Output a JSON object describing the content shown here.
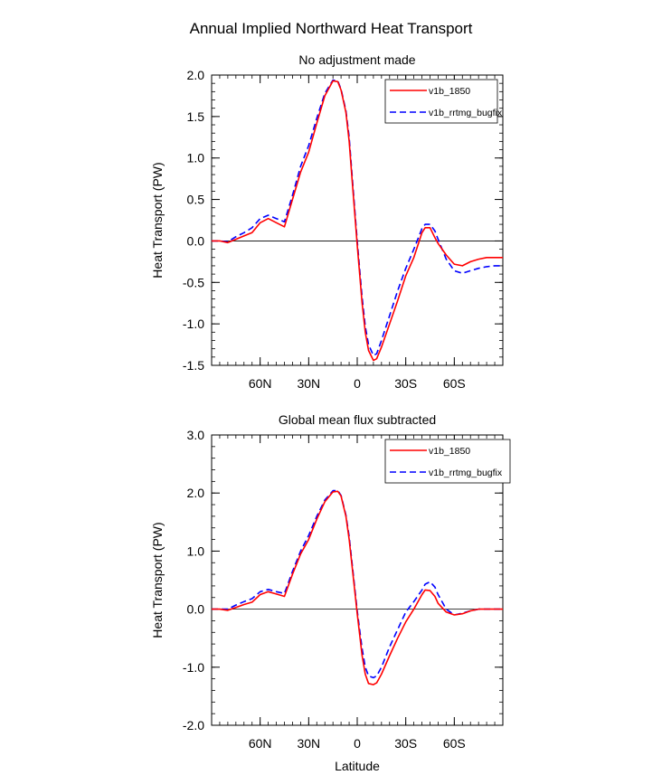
{
  "title": "Annual Implied Northward Heat Transport",
  "colors": {
    "series1": "#ff0000",
    "series2": "#0000ff",
    "zero": "#000000"
  },
  "chart_data": [
    {
      "type": "line",
      "subtitle": "No adjustment made",
      "ylabel": "Heat Transport (PW)",
      "xlabel": "",
      "xlim": [
        -90,
        90
      ],
      "ylim": [
        -1.5,
        2.0
      ],
      "yticks": [
        -1.5,
        -1.0,
        -0.5,
        0.0,
        0.5,
        1.0,
        1.5,
        2.0
      ],
      "ytick_labels": [
        "-1.5",
        "-1.0",
        "-0.5",
        "0.0",
        "0.5",
        "1.0",
        "1.5",
        "2.0"
      ],
      "xticks": [
        -60,
        -30,
        0,
        30,
        60
      ],
      "xtick_labels": [
        "60N",
        "30N",
        "0",
        "30S",
        "60S"
      ],
      "legend": [
        "v1b_1850",
        "v1b_rrtmg_bugfix"
      ],
      "x": [
        -90,
        -85,
        -80,
        -75,
        -70,
        -65,
        -60,
        -55,
        -50,
        -45,
        -40,
        -35,
        -30,
        -25,
        -20,
        -15,
        -12,
        -10,
        -7,
        -5,
        -3,
        0,
        3,
        5,
        7,
        10,
        12,
        15,
        20,
        25,
        30,
        35,
        40,
        42,
        45,
        48,
        50,
        55,
        60,
        65,
        70,
        75,
        80,
        85,
        90
      ],
      "series": [
        {
          "name": "v1b_1850",
          "style": "solid",
          "values": [
            0,
            0,
            -0.02,
            0.02,
            0.06,
            0.1,
            0.22,
            0.27,
            0.22,
            0.17,
            0.5,
            0.83,
            1.07,
            1.42,
            1.75,
            1.93,
            1.92,
            1.82,
            1.55,
            1.2,
            0.7,
            -0.05,
            -0.75,
            -1.1,
            -1.32,
            -1.44,
            -1.42,
            -1.28,
            -1.0,
            -0.72,
            -0.42,
            -0.2,
            0.1,
            0.16,
            0.16,
            0.04,
            -0.03,
            -0.17,
            -0.28,
            -0.3,
            -0.25,
            -0.22,
            -0.2,
            -0.2,
            -0.2
          ]
        },
        {
          "name": "v1b_rrtmg_bugfix",
          "style": "dashed",
          "values": [
            0,
            0,
            -0.01,
            0.05,
            0.1,
            0.16,
            0.27,
            0.31,
            0.27,
            0.23,
            0.55,
            0.9,
            1.15,
            1.48,
            1.78,
            1.94,
            1.93,
            1.83,
            1.57,
            1.25,
            0.75,
            0.0,
            -0.68,
            -1.03,
            -1.25,
            -1.38,
            -1.36,
            -1.2,
            -0.9,
            -0.6,
            -0.33,
            -0.1,
            0.15,
            0.2,
            0.2,
            0.12,
            0.02,
            -0.22,
            -0.36,
            -0.39,
            -0.36,
            -0.33,
            -0.31,
            -0.3,
            -0.3
          ]
        }
      ]
    },
    {
      "type": "line",
      "subtitle": "Global mean flux subtracted",
      "ylabel": "Heat Transport (PW)",
      "xlabel": "Latitude",
      "xlim": [
        -90,
        90
      ],
      "ylim": [
        -2.0,
        3.0
      ],
      "yticks": [
        -2.0,
        -1.0,
        0.0,
        1.0,
        2.0,
        3.0
      ],
      "ytick_labels": [
        "-2.0",
        "-1.0",
        "0.0",
        "1.0",
        "2.0",
        "3.0"
      ],
      "xticks": [
        -60,
        -30,
        0,
        30,
        60
      ],
      "xtick_labels": [
        "60N",
        "30N",
        "0",
        "30S",
        "60S"
      ],
      "legend": [
        "v1b_1850",
        "v1b_rrtmg_bugfix"
      ],
      "x": [
        -90,
        -85,
        -80,
        -75,
        -70,
        -65,
        -60,
        -55,
        -50,
        -45,
        -40,
        -35,
        -30,
        -25,
        -20,
        -15,
        -12,
        -10,
        -7,
        -5,
        -3,
        0,
        3,
        5,
        7,
        10,
        12,
        15,
        20,
        25,
        30,
        35,
        40,
        42,
        45,
        48,
        50,
        55,
        60,
        65,
        70,
        75,
        80,
        85,
        90
      ],
      "series": [
        {
          "name": "v1b_1850",
          "style": "solid",
          "values": [
            0,
            0,
            -0.02,
            0.03,
            0.08,
            0.12,
            0.25,
            0.3,
            0.26,
            0.22,
            0.6,
            0.95,
            1.2,
            1.55,
            1.85,
            2.02,
            2.03,
            1.95,
            1.6,
            1.2,
            0.7,
            -0.08,
            -0.8,
            -1.12,
            -1.28,
            -1.3,
            -1.27,
            -1.12,
            -0.8,
            -0.5,
            -0.22,
            0.0,
            0.25,
            0.33,
            0.32,
            0.22,
            0.1,
            -0.05,
            -0.1,
            -0.08,
            -0.03,
            0,
            0,
            0,
            0
          ]
        },
        {
          "name": "v1b_rrtmg_bugfix",
          "style": "dashed",
          "values": [
            0,
            0,
            0,
            0.07,
            0.13,
            0.18,
            0.3,
            0.34,
            0.3,
            0.27,
            0.65,
            1.0,
            1.27,
            1.6,
            1.88,
            2.04,
            2.04,
            1.96,
            1.62,
            1.25,
            0.75,
            -0.03,
            -0.68,
            -1.0,
            -1.15,
            -1.18,
            -1.15,
            -1.0,
            -0.65,
            -0.35,
            -0.05,
            0.13,
            0.33,
            0.43,
            0.47,
            0.38,
            0.25,
            0.0,
            -0.1,
            -0.07,
            -0.03,
            0,
            0,
            0,
            0
          ]
        }
      ]
    }
  ]
}
